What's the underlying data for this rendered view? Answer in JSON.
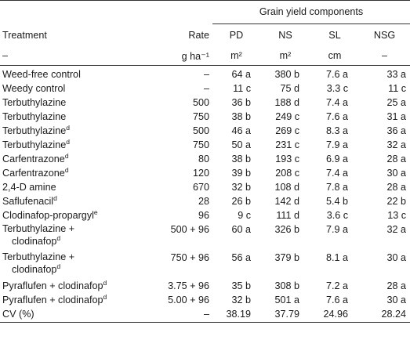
{
  "table": {
    "group_header": "Grain yield components",
    "columns": [
      {
        "key": "treatment",
        "label": "Treatment",
        "unit": "–"
      },
      {
        "key": "rate",
        "label": "Rate",
        "unit": "g ha⁻¹"
      },
      {
        "key": "pd",
        "label": "PD",
        "unit": "m²"
      },
      {
        "key": "ns",
        "label": "NS",
        "unit": "m²"
      },
      {
        "key": "sl",
        "label": "SL",
        "unit": "cm"
      },
      {
        "key": "nsg",
        "label": "NSG",
        "unit": "–"
      }
    ],
    "rows": [
      {
        "treatment": "Weed-free control",
        "sup": "",
        "rate": "–",
        "pd": "64 a",
        "ns": "380 b",
        "sl": "7.6 a",
        "nsg": "33 a"
      },
      {
        "treatment": "Weedy control",
        "sup": "",
        "rate": "–",
        "pd": "11 c",
        "ns": "75 d",
        "sl": "3.3 c",
        "nsg": "11 c"
      },
      {
        "treatment": "Terbuthylazine",
        "sup": "",
        "rate": "500",
        "pd": "36 b",
        "ns": "188 d",
        "sl": "7.4 a",
        "nsg": "25 a"
      },
      {
        "treatment": "Terbuthylazine",
        "sup": "",
        "rate": "750",
        "pd": "38 b",
        "ns": "249 c",
        "sl": "7.6 a",
        "nsg": "31 a"
      },
      {
        "treatment": "Terbuthylazine",
        "sup": "d",
        "rate": "500",
        "pd": "46 a",
        "ns": "269 c",
        "sl": "8.3 a",
        "nsg": "36 a"
      },
      {
        "treatment": "Terbuthylazine",
        "sup": "d",
        "rate": "750",
        "pd": "50 a",
        "ns": "231 c",
        "sl": "7.9 a",
        "nsg": "32 a"
      },
      {
        "treatment": "Carfentrazone",
        "sup": "d",
        "rate": "80",
        "pd": "38 b",
        "ns": "193 c",
        "sl": "6.9 a",
        "nsg": "28 a"
      },
      {
        "treatment": "Carfentrazone",
        "sup": "d",
        "rate": "120",
        "pd": "39 b",
        "ns": "208 c",
        "sl": "7.4 a",
        "nsg": "30 a"
      },
      {
        "treatment": "2,4-D amine",
        "sup": "",
        "rate": "670",
        "pd": "32 b",
        "ns": "108 d",
        "sl": "7.8 a",
        "nsg": "28 a"
      },
      {
        "treatment": "Saflufenacil",
        "sup": "d",
        "rate": "28",
        "pd": "26 b",
        "ns": "142 d",
        "sl": "5.4 b",
        "nsg": "22 b"
      },
      {
        "treatment": "Clodinafop-propargyl",
        "sup": "e",
        "rate": "96",
        "pd": "9 c",
        "ns": "111 d",
        "sl": "3.6 c",
        "nsg": "13 c"
      },
      {
        "treatment": "Terbuthylazine +",
        "treatment2": "clodinafop",
        "sup": "d",
        "rate": "500 + 96",
        "pd": "60 a",
        "ns": "326 b",
        "sl": "7.9 a",
        "nsg": "32 a"
      },
      {
        "treatment": "Terbuthylazine +",
        "treatment2": "clodinafop",
        "sup": "d",
        "rate": "750 + 96",
        "pd": "56 a",
        "ns": "379 b",
        "sl": "8.1 a",
        "nsg": "30 a"
      },
      {
        "treatment": "Pyraflufen + clodinafop",
        "sup": "d",
        "rate": "3.75 + 96",
        "pd": "35 b",
        "ns": "308 b",
        "sl": "7.2 a",
        "nsg": "28 a"
      },
      {
        "treatment": "Pyraflufen + clodinafop",
        "sup": "d",
        "rate": "5.00 + 96",
        "pd": "32 b",
        "ns": "501 a",
        "sl": "7.6 a",
        "nsg": "30 a"
      },
      {
        "treatment": "CV (%)",
        "sup": "",
        "rate": "–",
        "pd": "38.19",
        "ns": "37.79",
        "sl": "24.96",
        "nsg": "28.24"
      }
    ]
  }
}
